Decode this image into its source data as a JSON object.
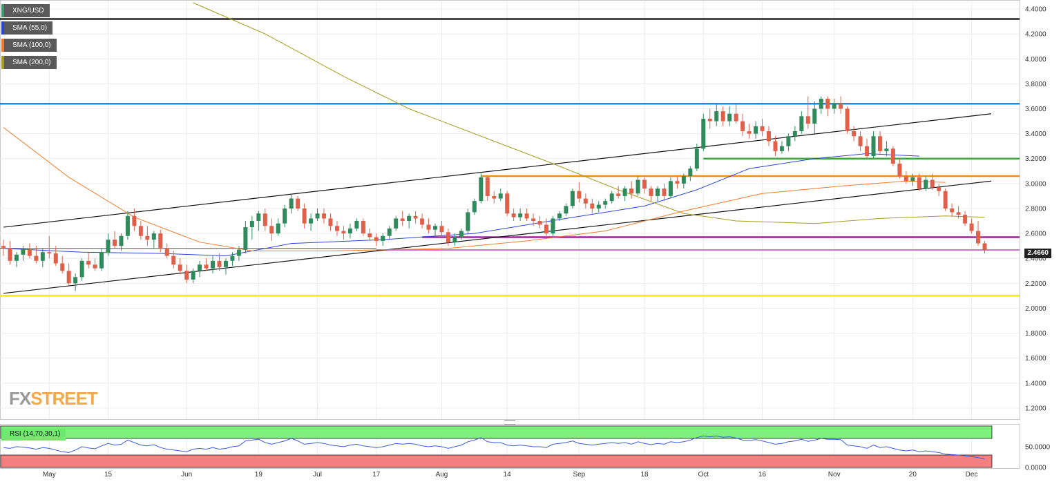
{
  "symbol_label": "XNG/USD",
  "legend": [
    {
      "label": "SMA (55,0)",
      "color": "#2b44d6"
    },
    {
      "label": "SMA (100,0)",
      "color": "#f07a2a"
    },
    {
      "label": "SMA (200,0)",
      "color": "#a89a1c"
    }
  ],
  "rsi_label": "RSI (14,70,30,1)",
  "last_price": "2.4660",
  "logo": {
    "fx": "FX",
    "street": "STREET"
  },
  "chart_data": {
    "type": "candlestick",
    "title": "",
    "x_ticks": [
      {
        "label": "May",
        "i": 7
      },
      {
        "label": "15",
        "i": 16
      },
      {
        "label": "Jun",
        "i": 28
      },
      {
        "label": "19",
        "i": 39
      },
      {
        "label": "Jul",
        "i": 48
      },
      {
        "label": "17",
        "i": 57
      },
      {
        "label": "Aug",
        "i": 67
      },
      {
        "label": "14",
        "i": 77
      },
      {
        "label": "Sep",
        "i": 88
      },
      {
        "label": "18",
        "i": 98
      },
      {
        "label": "Oct",
        "i": 107
      },
      {
        "label": "16",
        "i": 116
      },
      {
        "label": "Nov",
        "i": 127
      },
      {
        "label": "20",
        "i": 139
      },
      {
        "label": "Dec",
        "i": 148
      }
    ],
    "y_ticks": [
      "4.4000",
      "4.2000",
      "4.0000",
      "3.8000",
      "3.6000",
      "3.4000",
      "3.2000",
      "3.0000",
      "2.8000",
      "2.6000",
      "2.4000",
      "2.2000",
      "2.0000",
      "1.8000",
      "1.6000",
      "1.4000",
      "1.2000"
    ],
    "ylim": [
      1.1,
      4.45
    ],
    "ohlc": [
      [
        2.5,
        2.55,
        2.42,
        2.48
      ],
      [
        2.48,
        2.54,
        2.35,
        2.38
      ],
      [
        2.38,
        2.45,
        2.33,
        2.43
      ],
      [
        2.43,
        2.5,
        2.38,
        2.47
      ],
      [
        2.47,
        2.52,
        2.4,
        2.42
      ],
      [
        2.42,
        2.5,
        2.36,
        2.38
      ],
      [
        2.38,
        2.48,
        2.33,
        2.45
      ],
      [
        2.45,
        2.58,
        2.4,
        2.44
      ],
      [
        2.44,
        2.5,
        2.34,
        2.36
      ],
      [
        2.36,
        2.42,
        2.28,
        2.3
      ],
      [
        2.3,
        2.36,
        2.18,
        2.2
      ],
      [
        2.2,
        2.28,
        2.14,
        2.25
      ],
      [
        2.25,
        2.4,
        2.22,
        2.38
      ],
      [
        2.38,
        2.45,
        2.32,
        2.35
      ],
      [
        2.35,
        2.4,
        2.3,
        2.32
      ],
      [
        2.32,
        2.48,
        2.3,
        2.45
      ],
      [
        2.45,
        2.6,
        2.42,
        2.55
      ],
      [
        2.55,
        2.62,
        2.48,
        2.5
      ],
      [
        2.5,
        2.6,
        2.46,
        2.58
      ],
      [
        2.58,
        2.78,
        2.55,
        2.74
      ],
      [
        2.74,
        2.8,
        2.62,
        2.66
      ],
      [
        2.66,
        2.7,
        2.55,
        2.58
      ],
      [
        2.58,
        2.66,
        2.5,
        2.55
      ],
      [
        2.55,
        2.62,
        2.48,
        2.6
      ],
      [
        2.6,
        2.63,
        2.45,
        2.48
      ],
      [
        2.48,
        2.52,
        2.4,
        2.42
      ],
      [
        2.42,
        2.46,
        2.32,
        2.35
      ],
      [
        2.35,
        2.4,
        2.28,
        2.3
      ],
      [
        2.3,
        2.35,
        2.2,
        2.23
      ],
      [
        2.23,
        2.32,
        2.2,
        2.3
      ],
      [
        2.3,
        2.38,
        2.25,
        2.35
      ],
      [
        2.35,
        2.4,
        2.3,
        2.32
      ],
      [
        2.32,
        2.42,
        2.28,
        2.38
      ],
      [
        2.38,
        2.44,
        2.3,
        2.33
      ],
      [
        2.33,
        2.4,
        2.27,
        2.38
      ],
      [
        2.38,
        2.45,
        2.34,
        2.42
      ],
      [
        2.42,
        2.5,
        2.38,
        2.47
      ],
      [
        2.47,
        2.7,
        2.44,
        2.65
      ],
      [
        2.65,
        2.74,
        2.55,
        2.7
      ],
      [
        2.7,
        2.78,
        2.62,
        2.76
      ],
      [
        2.76,
        2.8,
        2.62,
        2.66
      ],
      [
        2.66,
        2.72,
        2.54,
        2.6
      ],
      [
        2.6,
        2.72,
        2.58,
        2.68
      ],
      [
        2.68,
        2.83,
        2.65,
        2.8
      ],
      [
        2.8,
        2.92,
        2.76,
        2.88
      ],
      [
        2.88,
        2.9,
        2.78,
        2.8
      ],
      [
        2.8,
        2.84,
        2.64,
        2.68
      ],
      [
        2.68,
        2.76,
        2.62,
        2.72
      ],
      [
        2.72,
        2.8,
        2.7,
        2.76
      ],
      [
        2.76,
        2.8,
        2.68,
        2.72
      ],
      [
        2.72,
        2.76,
        2.62,
        2.66
      ],
      [
        2.66,
        2.7,
        2.58,
        2.62
      ],
      [
        2.62,
        2.66,
        2.55,
        2.6
      ],
      [
        2.6,
        2.68,
        2.56,
        2.64
      ],
      [
        2.64,
        2.72,
        2.62,
        2.7
      ],
      [
        2.7,
        2.72,
        2.58,
        2.6
      ],
      [
        2.6,
        2.64,
        2.54,
        2.57
      ],
      [
        2.57,
        2.6,
        2.5,
        2.54
      ],
      [
        2.54,
        2.6,
        2.5,
        2.58
      ],
      [
        2.58,
        2.66,
        2.55,
        2.64
      ],
      [
        2.64,
        2.74,
        2.62,
        2.72
      ],
      [
        2.72,
        2.78,
        2.66,
        2.7
      ],
      [
        2.7,
        2.76,
        2.64,
        2.74
      ],
      [
        2.74,
        2.78,
        2.68,
        2.72
      ],
      [
        2.72,
        2.76,
        2.64,
        2.67
      ],
      [
        2.67,
        2.72,
        2.6,
        2.63
      ],
      [
        2.63,
        2.68,
        2.58,
        2.66
      ],
      [
        2.66,
        2.7,
        2.58,
        2.61
      ],
      [
        2.61,
        2.64,
        2.5,
        2.53
      ],
      [
        2.53,
        2.6,
        2.5,
        2.57
      ],
      [
        2.57,
        2.64,
        2.55,
        2.62
      ],
      [
        2.62,
        2.8,
        2.6,
        2.77
      ],
      [
        2.77,
        2.88,
        2.75,
        2.86
      ],
      [
        2.86,
        3.08,
        2.84,
        3.05
      ],
      [
        3.05,
        3.06,
        2.86,
        2.9
      ],
      [
        2.9,
        2.94,
        2.84,
        2.88
      ],
      [
        2.88,
        2.96,
        2.86,
        2.92
      ],
      [
        2.92,
        2.94,
        2.74,
        2.76
      ],
      [
        2.76,
        2.8,
        2.7,
        2.73
      ],
      [
        2.73,
        2.8,
        2.7,
        2.76
      ],
      [
        2.76,
        2.8,
        2.7,
        2.72
      ],
      [
        2.72,
        2.76,
        2.66,
        2.7
      ],
      [
        2.7,
        2.74,
        2.64,
        2.67
      ],
      [
        2.67,
        2.72,
        2.58,
        2.6
      ],
      [
        2.6,
        2.74,
        2.58,
        2.72
      ],
      [
        2.72,
        2.78,
        2.7,
        2.76
      ],
      [
        2.76,
        2.84,
        2.74,
        2.82
      ],
      [
        2.82,
        2.96,
        2.8,
        2.94
      ],
      [
        2.94,
        3.01,
        2.85,
        2.88
      ],
      [
        2.88,
        2.92,
        2.8,
        2.84
      ],
      [
        2.84,
        2.88,
        2.76,
        2.8
      ],
      [
        2.8,
        2.86,
        2.77,
        2.83
      ],
      [
        2.83,
        2.88,
        2.8,
        2.86
      ],
      [
        2.86,
        2.94,
        2.84,
        2.92
      ],
      [
        2.92,
        2.98,
        2.88,
        2.9
      ],
      [
        2.9,
        2.98,
        2.86,
        2.96
      ],
      [
        2.96,
        3.02,
        2.88,
        2.92
      ],
      [
        2.92,
        3.06,
        2.9,
        3.03
      ],
      [
        3.03,
        3.05,
        2.92,
        2.96
      ],
      [
        2.96,
        2.98,
        2.86,
        2.9
      ],
      [
        2.9,
        2.98,
        2.86,
        2.96
      ],
      [
        2.96,
        3.0,
        2.86,
        2.9
      ],
      [
        2.9,
        3.05,
        2.88,
        3.02
      ],
      [
        3.02,
        3.06,
        2.96,
        3.0
      ],
      [
        3.0,
        3.08,
        2.96,
        3.06
      ],
      [
        3.06,
        3.14,
        3.02,
        3.12
      ],
      [
        3.12,
        3.32,
        3.1,
        3.28
      ],
      [
        3.28,
        3.56,
        3.26,
        3.52
      ],
      [
        3.52,
        3.6,
        3.44,
        3.5
      ],
      [
        3.5,
        3.64,
        3.46,
        3.58
      ],
      [
        3.58,
        3.62,
        3.46,
        3.5
      ],
      [
        3.5,
        3.62,
        3.46,
        3.56
      ],
      [
        3.56,
        3.64,
        3.48,
        3.5
      ],
      [
        3.5,
        3.56,
        3.38,
        3.42
      ],
      [
        3.42,
        3.48,
        3.36,
        3.4
      ],
      [
        3.4,
        3.5,
        3.36,
        3.46
      ],
      [
        3.46,
        3.52,
        3.38,
        3.42
      ],
      [
        3.42,
        3.46,
        3.3,
        3.34
      ],
      [
        3.34,
        3.38,
        3.22,
        3.26
      ],
      [
        3.26,
        3.34,
        3.24,
        3.3
      ],
      [
        3.3,
        3.4,
        3.26,
        3.38
      ],
      [
        3.38,
        3.46,
        3.34,
        3.42
      ],
      [
        3.42,
        3.58,
        3.4,
        3.54
      ],
      [
        3.54,
        3.7,
        3.44,
        3.48
      ],
      [
        3.48,
        3.66,
        3.4,
        3.6
      ],
      [
        3.6,
        3.7,
        3.56,
        3.68
      ],
      [
        3.68,
        3.7,
        3.54,
        3.6
      ],
      [
        3.6,
        3.68,
        3.56,
        3.64
      ],
      [
        3.64,
        3.7,
        3.56,
        3.6
      ],
      [
        3.6,
        3.62,
        3.4,
        3.42
      ],
      [
        3.42,
        3.46,
        3.34,
        3.38
      ],
      [
        3.38,
        3.42,
        3.26,
        3.3
      ],
      [
        3.3,
        3.36,
        3.2,
        3.22
      ],
      [
        3.22,
        3.42,
        3.2,
        3.38
      ],
      [
        3.38,
        3.42,
        3.24,
        3.26
      ],
      [
        3.26,
        3.34,
        3.22,
        3.28
      ],
      [
        3.28,
        3.3,
        3.14,
        3.16
      ],
      [
        3.16,
        3.2,
        3.04,
        3.06
      ],
      [
        3.06,
        3.1,
        3.0,
        3.02
      ],
      [
        3.02,
        3.08,
        2.98,
        3.05
      ],
      [
        3.05,
        3.08,
        2.94,
        2.96
      ],
      [
        2.96,
        3.06,
        2.94,
        3.03
      ],
      [
        3.03,
        3.08,
        2.95,
        2.97
      ],
      [
        2.97,
        3.0,
        2.9,
        2.94
      ],
      [
        2.94,
        2.96,
        2.78,
        2.8
      ],
      [
        2.8,
        2.84,
        2.74,
        2.77
      ],
      [
        2.77,
        2.82,
        2.72,
        2.75
      ],
      [
        2.75,
        2.78,
        2.66,
        2.68
      ],
      [
        2.68,
        2.72,
        2.6,
        2.62
      ],
      [
        2.62,
        2.7,
        2.5,
        2.52
      ],
      [
        2.52,
        2.54,
        2.44,
        2.466
      ]
    ],
    "sma55": [
      [
        0,
        2.48
      ],
      [
        12,
        2.45
      ],
      [
        24,
        2.44
      ],
      [
        34,
        2.42
      ],
      [
        44,
        2.52
      ],
      [
        58,
        2.55
      ],
      [
        72,
        2.6
      ],
      [
        86,
        2.72
      ],
      [
        98,
        2.82
      ],
      [
        106,
        2.95
      ],
      [
        114,
        3.12
      ],
      [
        124,
        3.2
      ],
      [
        132,
        3.24
      ],
      [
        140,
        3.22
      ]
    ],
    "sma100": [
      [
        0,
        3.45
      ],
      [
        10,
        3.05
      ],
      [
        20,
        2.73
      ],
      [
        30,
        2.53
      ],
      [
        38,
        2.46
      ],
      [
        50,
        2.46
      ],
      [
        68,
        2.48
      ],
      [
        80,
        2.54
      ],
      [
        92,
        2.62
      ],
      [
        104,
        2.78
      ],
      [
        116,
        2.92
      ],
      [
        128,
        2.98
      ],
      [
        138,
        3.02
      ],
      [
        144,
        3.01
      ]
    ],
    "sma200": [
      [
        29,
        4.45
      ],
      [
        40,
        4.2
      ],
      [
        52,
        3.86
      ],
      [
        62,
        3.6
      ],
      [
        74,
        3.36
      ],
      [
        84,
        3.16
      ],
      [
        94,
        2.95
      ],
      [
        104,
        2.76
      ],
      [
        112,
        2.7
      ],
      [
        124,
        2.68
      ],
      [
        134,
        2.72
      ],
      [
        144,
        2.74
      ],
      [
        150,
        2.73
      ]
    ],
    "horizontal_levels": [
      {
        "value": 4.32,
        "color": "#222222"
      },
      {
        "value": 3.64,
        "color": "#1e88e5"
      },
      {
        "value": 3.2,
        "color": "#3aa83a",
        "from": 107
      },
      {
        "value": 3.06,
        "color": "#ff8c00",
        "from": 73
      },
      {
        "value": 2.57,
        "color": "#a020a0",
        "from": 64
      },
      {
        "value": 2.468,
        "color": "#d070d0",
        "from": 57
      },
      {
        "value": 2.1,
        "color": "#f5ea00"
      },
      {
        "value": 2.48,
        "color": "#555555",
        "to": 57
      }
    ],
    "trendlines": [
      {
        "from": [
          0,
          2.12
        ],
        "to": [
          151,
          3.02
        ]
      },
      {
        "from": [
          0,
          2.65
        ],
        "to": [
          151,
          3.56
        ]
      }
    ],
    "rsi": {
      "y_ticks": [
        "50.0000",
        "0.0000"
      ],
      "ylim": [
        0,
        100
      ],
      "overbought": 70,
      "oversold": 30,
      "values": [
        48,
        46,
        50,
        49,
        47,
        44,
        48,
        46,
        42,
        38,
        36,
        42,
        50,
        47,
        45,
        52,
        58,
        54,
        56,
        66,
        60,
        54,
        52,
        55,
        48,
        44,
        42,
        40,
        38,
        44,
        46,
        44,
        48,
        44,
        46,
        50,
        52,
        64,
        66,
        68,
        60,
        56,
        60,
        64,
        70,
        64,
        56,
        58,
        60,
        58,
        54,
        52,
        50,
        54,
        56,
        52,
        50,
        48,
        50,
        54,
        58,
        56,
        58,
        56,
        52,
        50,
        52,
        50,
        46,
        50,
        54,
        62,
        66,
        72,
        62,
        60,
        60,
        54,
        52,
        54,
        52,
        50,
        50,
        48,
        56,
        58,
        60,
        64,
        58,
        56,
        54,
        56,
        58,
        60,
        58,
        60,
        56,
        62,
        58,
        55,
        58,
        56,
        62,
        60,
        62,
        66,
        72,
        76,
        74,
        76,
        73,
        74,
        71,
        66,
        65,
        67,
        64,
        60,
        56,
        58,
        62,
        64,
        68,
        63,
        66,
        70,
        68,
        68,
        67,
        54,
        52,
        50,
        46,
        54,
        48,
        50,
        46,
        42,
        40,
        42,
        38,
        40,
        38,
        36,
        32,
        31,
        30,
        28,
        26,
        24,
        20
      ]
    }
  }
}
